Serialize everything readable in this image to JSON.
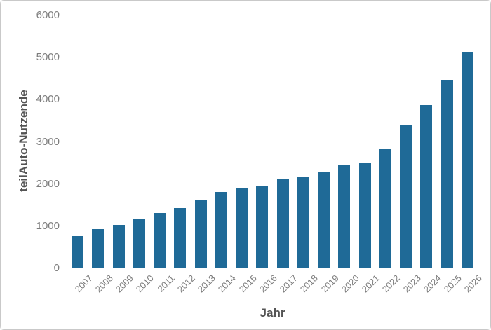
{
  "chart_data": {
    "type": "bar",
    "title": "",
    "xlabel": "Jahr",
    "ylabel": "teilAuto-Nutzende",
    "categories": [
      "2007",
      "2008",
      "2009",
      "2010",
      "2011",
      "2012",
      "2013",
      "2014",
      "2015",
      "2016",
      "2017",
      "2018",
      "2019",
      "2020",
      "2021",
      "2022",
      "2023",
      "2024",
      "2025",
      "2026"
    ],
    "values": [
      750,
      910,
      1010,
      1170,
      1300,
      1410,
      1600,
      1800,
      1890,
      1950,
      2100,
      2150,
      2270,
      2430,
      2480,
      2830,
      3370,
      3860,
      4450,
      5120
    ],
    "ylim": [
      0,
      6000
    ],
    "yticks": [
      0,
      1000,
      2000,
      3000,
      4000,
      5000,
      6000
    ],
    "grid": true,
    "legend": false,
    "colors": {
      "bar": "#1f6a97",
      "gridline": "#d9d9d9",
      "axis_line": "#cfcfcf",
      "tick_text": "#7d7d7d",
      "title_text": "#545454",
      "frame_border": "#c9c9c9",
      "background": "#ffffff"
    }
  }
}
